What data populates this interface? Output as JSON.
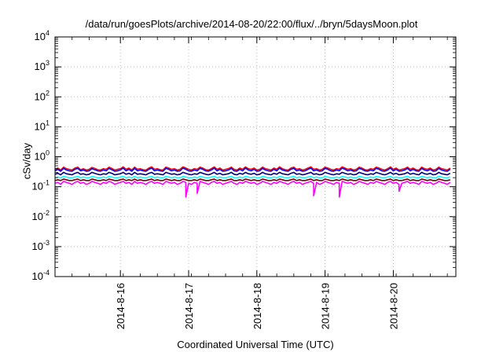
{
  "chart_data": {
    "type": "line",
    "title": "/data/run/goesPlots/archive/2014-08-20/22:00/flux/../bryn/5daysMoon.plot",
    "xlabel": "Coordinated Universal Time (UTC)",
    "ylabel": "cSv/day",
    "yscale": "log",
    "ylim": [
      0.0001,
      10000
    ],
    "y_ticks": [
      {
        "value": 0.0001,
        "base": "10",
        "exp": "-4"
      },
      {
        "value": 0.001,
        "base": "10",
        "exp": "-3"
      },
      {
        "value": 0.01,
        "base": "10",
        "exp": "-2"
      },
      {
        "value": 0.1,
        "base": "10",
        "exp": "-1"
      },
      {
        "value": 1,
        "base": "10",
        "exp": "0"
      },
      {
        "value": 10,
        "base": "10",
        "exp": "1"
      },
      {
        "value": 100,
        "base": "10",
        "exp": "2"
      },
      {
        "value": 1000,
        "base": "10",
        "exp": "3"
      },
      {
        "value": 10000,
        "base": "10",
        "exp": "4"
      }
    ],
    "x_ticks": [
      "2014-8-16",
      "2014-8-17",
      "2014-8-18",
      "2014-8-19",
      "2014-8-20"
    ],
    "xlim": [
      "2014-08-15T01:00",
      "2014-08-20T22:00"
    ],
    "grid": true,
    "series": [
      {
        "color": "#ff00ff",
        "x_start": "2014-08-15T01:00",
        "interval_minutes": 60,
        "values": [
          0.13,
          0.14,
          0.12,
          0.15,
          0.14,
          0.13,
          0.12,
          0.14,
          0.15,
          0.13,
          0.14,
          0.12,
          0.13,
          0.15,
          0.14,
          0.13,
          0.12,
          0.14,
          0.13,
          0.15,
          0.14,
          0.12,
          0.13,
          0.14,
          0.15,
          0.13,
          0.14,
          0.12,
          0.15,
          0.13,
          0.14,
          0.13,
          0.12,
          0.14,
          0.15,
          0.13,
          0.14,
          0.13,
          0.12,
          0.15,
          0.14,
          0.13,
          0.14,
          0.12,
          0.13,
          0.15,
          0.14,
          0.13,
          0.12,
          0.14,
          0.13,
          0.15,
          0.14,
          0.13,
          0.12,
          0.14,
          0.15,
          0.13,
          0.14,
          0.12,
          0.13,
          0.14,
          0.15,
          0.13,
          0.12,
          0.14,
          0.13,
          0.15,
          0.14,
          0.13,
          0.14,
          0.12,
          0.13,
          0.15,
          0.14,
          0.13,
          0.12,
          0.14,
          0.13,
          0.15,
          0.14,
          0.13,
          0.12,
          0.14,
          0.15,
          0.13,
          0.14,
          0.12,
          0.13,
          0.14,
          0.15,
          0.13,
          0.14,
          0.12,
          0.13,
          0.15,
          0.14,
          0.13,
          0.12,
          0.14,
          0.13,
          0.15,
          0.14,
          0.13,
          0.14,
          0.12,
          0.13,
          0.15,
          0.14,
          0.13,
          0.12,
          0.14,
          0.13,
          0.15,
          0.14,
          0.13,
          0.12,
          0.14,
          0.15,
          0.13,
          0.14,
          0.12,
          0.13,
          0.14,
          0.15,
          0.13,
          0.14,
          0.13,
          0.12,
          0.15,
          0.14,
          0.13,
          0.14,
          0.12,
          0.13,
          0.15,
          0.14,
          0.13,
          0.12,
          0.14
        ]
      },
      {
        "color": "#800000",
        "x_start": "2014-08-15T01:00",
        "interval_minutes": 60,
        "values": [
          0.16,
          0.17,
          0.16,
          0.18,
          0.17,
          0.16,
          0.16,
          0.17,
          0.18,
          0.16,
          0.17,
          0.16,
          0.16,
          0.18,
          0.17,
          0.16,
          0.16,
          0.17,
          0.16,
          0.18,
          0.17,
          0.16,
          0.16,
          0.17,
          0.18,
          0.16,
          0.17,
          0.16,
          0.18,
          0.16,
          0.17,
          0.16,
          0.16,
          0.17,
          0.18,
          0.16,
          0.17,
          0.16,
          0.16,
          0.18,
          0.17,
          0.16,
          0.17,
          0.16,
          0.16,
          0.18,
          0.17,
          0.16,
          0.16,
          0.17,
          0.16,
          0.18,
          0.17,
          0.16,
          0.16,
          0.17,
          0.18,
          0.16,
          0.17,
          0.16,
          0.16,
          0.17,
          0.18,
          0.16,
          0.16,
          0.17,
          0.16,
          0.18,
          0.17,
          0.16,
          0.17,
          0.16,
          0.16,
          0.18,
          0.17,
          0.16,
          0.16,
          0.17,
          0.16,
          0.18,
          0.17,
          0.16,
          0.16,
          0.17,
          0.18,
          0.16,
          0.17,
          0.16,
          0.16,
          0.17,
          0.18,
          0.16,
          0.17,
          0.16,
          0.16,
          0.18,
          0.17,
          0.16,
          0.16,
          0.17,
          0.16,
          0.18,
          0.17,
          0.16,
          0.17,
          0.16,
          0.16,
          0.18,
          0.17,
          0.16,
          0.16,
          0.17,
          0.16,
          0.18,
          0.17,
          0.16,
          0.16,
          0.17,
          0.18,
          0.16,
          0.17,
          0.16,
          0.16,
          0.17,
          0.18,
          0.16,
          0.17,
          0.16,
          0.16,
          0.18,
          0.17,
          0.16,
          0.17,
          0.16,
          0.16,
          0.18,
          0.17,
          0.16,
          0.16,
          0.17
        ]
      },
      {
        "color": "#00ffff",
        "x_start": "2014-08-15T01:00",
        "interval_minutes": 60,
        "values": [
          0.2,
          0.21,
          0.2,
          0.22,
          0.21,
          0.2,
          0.2,
          0.21,
          0.22,
          0.2,
          0.21,
          0.2,
          0.2,
          0.22,
          0.21,
          0.2,
          0.2,
          0.21,
          0.2,
          0.22,
          0.21,
          0.2,
          0.2,
          0.21,
          0.22,
          0.2,
          0.21,
          0.2,
          0.22,
          0.2,
          0.21,
          0.2,
          0.2,
          0.21,
          0.22,
          0.2,
          0.21,
          0.2,
          0.2,
          0.22,
          0.21,
          0.2,
          0.21,
          0.2,
          0.2,
          0.22,
          0.21,
          0.2,
          0.2,
          0.21,
          0.2,
          0.22,
          0.21,
          0.2,
          0.2,
          0.21,
          0.22,
          0.2,
          0.21,
          0.2,
          0.2,
          0.21,
          0.22,
          0.2,
          0.2,
          0.21,
          0.2,
          0.22,
          0.21,
          0.2,
          0.21,
          0.2,
          0.2,
          0.22,
          0.21,
          0.2,
          0.2,
          0.21,
          0.2,
          0.22,
          0.21,
          0.2,
          0.2,
          0.21,
          0.22,
          0.2,
          0.21,
          0.2,
          0.2,
          0.21,
          0.22,
          0.2,
          0.21,
          0.2,
          0.2,
          0.22,
          0.21,
          0.2,
          0.2,
          0.21,
          0.2,
          0.22,
          0.21,
          0.2,
          0.21,
          0.2,
          0.2,
          0.22,
          0.21,
          0.2,
          0.2,
          0.21,
          0.2,
          0.22,
          0.21,
          0.2,
          0.2,
          0.21,
          0.22,
          0.2,
          0.21,
          0.2,
          0.2,
          0.21,
          0.22,
          0.2,
          0.21,
          0.2,
          0.2,
          0.22,
          0.21,
          0.2,
          0.21,
          0.2,
          0.2,
          0.22,
          0.21,
          0.2,
          0.2,
          0.21
        ]
      },
      {
        "color": "#000080",
        "x_start": "2014-08-15T01:00",
        "interval_minutes": 60,
        "values": [
          0.26,
          0.28,
          0.25,
          0.3,
          0.27,
          0.26,
          0.25,
          0.28,
          0.3,
          0.26,
          0.27,
          0.25,
          0.26,
          0.3,
          0.28,
          0.26,
          0.25,
          0.27,
          0.26,
          0.3,
          0.28,
          0.25,
          0.26,
          0.27,
          0.3,
          0.26,
          0.28,
          0.25,
          0.3,
          0.26,
          0.27,
          0.26,
          0.25,
          0.28,
          0.3,
          0.26,
          0.27,
          0.26,
          0.25,
          0.3,
          0.28,
          0.26,
          0.27,
          0.25,
          0.26,
          0.3,
          0.28,
          0.26,
          0.25,
          0.27,
          0.26,
          0.3,
          0.28,
          0.26,
          0.25,
          0.27,
          0.3,
          0.26,
          0.28,
          0.25,
          0.26,
          0.27,
          0.3,
          0.26,
          0.25,
          0.28,
          0.26,
          0.3,
          0.27,
          0.26,
          0.28,
          0.25,
          0.26,
          0.3,
          0.27,
          0.26,
          0.25,
          0.28,
          0.26,
          0.3,
          0.27,
          0.26,
          0.25,
          0.28,
          0.3,
          0.26,
          0.27,
          0.25,
          0.26,
          0.28,
          0.3,
          0.26,
          0.27,
          0.25,
          0.26,
          0.3,
          0.28,
          0.26,
          0.25,
          0.27,
          0.26,
          0.3,
          0.28,
          0.26,
          0.27,
          0.25,
          0.26,
          0.3,
          0.28,
          0.26,
          0.25,
          0.27,
          0.26,
          0.3,
          0.28,
          0.26,
          0.25,
          0.27,
          0.3,
          0.26,
          0.28,
          0.25,
          0.26,
          0.27,
          0.3,
          0.26,
          0.28,
          0.26,
          0.25,
          0.3,
          0.27,
          0.26,
          0.28,
          0.25,
          0.26,
          0.3,
          0.27,
          0.26,
          0.25,
          0.28
        ]
      },
      {
        "color": "#ff0000",
        "x_start": "2014-08-15T01:00",
        "interval_minutes": 60,
        "values": [
          0.38,
          0.42,
          0.36,
          0.45,
          0.4,
          0.38,
          0.36,
          0.42,
          0.45,
          0.37,
          0.4,
          0.36,
          0.38,
          0.44,
          0.41,
          0.37,
          0.36,
          0.4,
          0.38,
          0.45,
          0.41,
          0.36,
          0.38,
          0.4,
          0.46,
          0.38,
          0.42,
          0.36,
          0.45,
          0.38,
          0.4,
          0.37,
          0.36,
          0.42,
          0.46,
          0.38,
          0.4,
          0.37,
          0.36,
          0.45,
          0.42,
          0.38,
          0.4,
          0.36,
          0.38,
          0.46,
          0.42,
          0.38,
          0.36,
          0.4,
          0.38,
          0.45,
          0.42,
          0.37,
          0.36,
          0.4,
          0.46,
          0.38,
          0.42,
          0.36,
          0.38,
          0.4,
          0.45,
          0.38,
          0.36,
          0.42,
          0.38,
          0.46,
          0.4,
          0.38,
          0.42,
          0.36,
          0.38,
          0.45,
          0.4,
          0.38,
          0.36,
          0.42,
          0.38,
          0.46,
          0.4,
          0.37,
          0.36,
          0.42,
          0.45,
          0.38,
          0.4,
          0.36,
          0.38,
          0.42,
          0.46,
          0.38,
          0.4,
          0.36,
          0.38,
          0.45,
          0.42,
          0.38,
          0.36,
          0.4,
          0.38,
          0.46,
          0.42,
          0.38,
          0.4,
          0.36,
          0.38,
          0.45,
          0.42,
          0.37,
          0.36,
          0.4,
          0.38,
          0.45,
          0.42,
          0.38,
          0.36,
          0.4,
          0.46,
          0.38,
          0.42,
          0.36,
          0.38,
          0.4,
          0.45,
          0.38,
          0.42,
          0.37,
          0.36,
          0.45,
          0.4,
          0.38,
          0.42,
          0.36,
          0.38,
          0.45,
          0.4,
          0.38,
          0.36,
          0.42
        ]
      },
      {
        "color": "#0000ff",
        "x_start": "2014-08-15T01:00",
        "interval_minutes": 60,
        "values": [
          0.34,
          0.38,
          0.33,
          0.41,
          0.36,
          0.34,
          0.33,
          0.38,
          0.41,
          0.34,
          0.36,
          0.33,
          0.34,
          0.4,
          0.37,
          0.34,
          0.33,
          0.36,
          0.34,
          0.41,
          0.37,
          0.33,
          0.34,
          0.36,
          0.42,
          0.34,
          0.38,
          0.33,
          0.41,
          0.34,
          0.36,
          0.34,
          0.33,
          0.38,
          0.42,
          0.34,
          0.36,
          0.34,
          0.33,
          0.41,
          0.38,
          0.34,
          0.36,
          0.33,
          0.34,
          0.42,
          0.38,
          0.34,
          0.33,
          0.36,
          0.34,
          0.41,
          0.38,
          0.34,
          0.33,
          0.36,
          0.42,
          0.34,
          0.38,
          0.33,
          0.34,
          0.36,
          0.41,
          0.34,
          0.33,
          0.38,
          0.34,
          0.42,
          0.36,
          0.34,
          0.38,
          0.33,
          0.34,
          0.41,
          0.36,
          0.34,
          0.33,
          0.38,
          0.34,
          0.42,
          0.36,
          0.34,
          0.33,
          0.38,
          0.41,
          0.34,
          0.36,
          0.33,
          0.34,
          0.38,
          0.42,
          0.34,
          0.36,
          0.33,
          0.34,
          0.41,
          0.38,
          0.34,
          0.33,
          0.36,
          0.34,
          0.42,
          0.38,
          0.34,
          0.36,
          0.33,
          0.34,
          0.41,
          0.38,
          0.34,
          0.33,
          0.36,
          0.34,
          0.41,
          0.38,
          0.34,
          0.33,
          0.36,
          0.42,
          0.34,
          0.38,
          0.33,
          0.34,
          0.36,
          0.41,
          0.34,
          0.38,
          0.34,
          0.33,
          0.41,
          0.36,
          0.34,
          0.38,
          0.33,
          0.34,
          0.41,
          0.36,
          0.34,
          0.33,
          0.38
        ]
      }
    ],
    "dips": [
      {
        "series": 0,
        "x": "2014-08-16T23:00",
        "value": 0.045
      },
      {
        "series": 0,
        "x": "2014-08-17T03:00",
        "value": 0.06
      },
      {
        "series": 0,
        "x": "2014-08-18T20:00",
        "value": 0.05
      },
      {
        "series": 0,
        "x": "2014-08-19T05:00",
        "value": 0.045
      },
      {
        "series": 0,
        "x": "2014-08-20T02:00",
        "value": 0.07
      }
    ]
  }
}
